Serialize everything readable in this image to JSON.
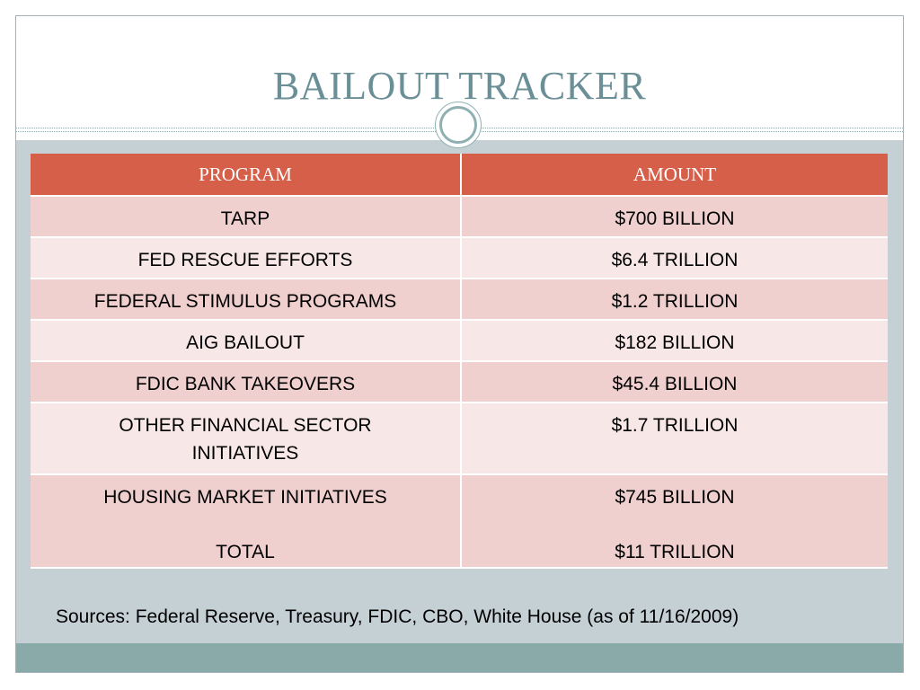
{
  "slide": {
    "title": "BAILOUT TRACKER",
    "sources": "Sources: Federal Reserve, Treasury, FDIC, CBO, White House  (as of 11/16/2009)"
  },
  "table": {
    "headers": [
      "PROGRAM",
      "AMOUNT"
    ],
    "rows": [
      {
        "program": "TARP",
        "amount": "$700 BILLION"
      },
      {
        "program": "FED RESCUE EFFORTS",
        "amount": "$6.4 TRILLION"
      },
      {
        "program": "FEDERAL STIMULUS PROGRAMS",
        "amount": "$1.2 TRILLION"
      },
      {
        "program": "AIG BAILOUT",
        "amount": "$182 BILLION"
      },
      {
        "program": "FDIC BANK TAKEOVERS",
        "amount": "$45.4 BILLION"
      },
      {
        "program": "OTHER FINANCIAL SECTOR INITIATIVES",
        "amount": "$1.7 TRILLION"
      },
      {
        "program": "HOUSING MARKET INITIATIVES",
        "amount": "$745 BILLION"
      }
    ],
    "total": {
      "program": "TOTAL",
      "amount": "$11 TRILLION"
    }
  },
  "colors": {
    "header_bg": "#d65f4a",
    "row_odd": "#efd0ce",
    "row_even": "#f7e8e7",
    "title": "#6b8f96",
    "slide_bg": "#c5d0d5",
    "footer_bar": "#8aaaaa"
  }
}
